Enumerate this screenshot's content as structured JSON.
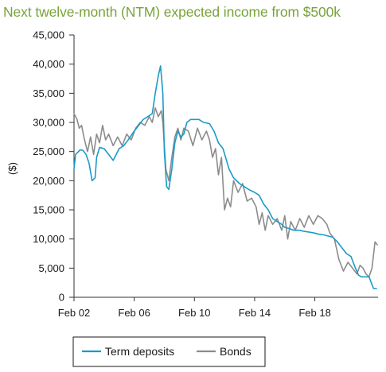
{
  "chart_data": {
    "type": "line",
    "title": "Next twelve-month (NTM) expected income from $500k",
    "ylabel": "($)",
    "xlabel": "",
    "ylim": [
      0,
      45000
    ],
    "yticks": [
      0,
      5000,
      10000,
      15000,
      20000,
      25000,
      30000,
      35000,
      40000,
      45000
    ],
    "yticklabels": [
      "0",
      "5,000",
      "10,000",
      "15,000",
      "20,000",
      "25,000",
      "30,000",
      "35,000",
      "40,000",
      "45,000"
    ],
    "xlim": [
      2002,
      2022.2
    ],
    "xticks": [
      2002,
      2006,
      2010,
      2014,
      2018
    ],
    "xticklabels": [
      "Feb 02",
      "Feb 06",
      "Feb 10",
      "Feb 14",
      "Feb 18"
    ],
    "grid": false,
    "legend_position": "bottom",
    "series": [
      {
        "name": "Term deposits",
        "color": "#1a9bc7",
        "x": [
          2002.0,
          2002.1,
          2002.3,
          2002.4,
          2002.6,
          2002.8,
          2003.0,
          2003.2,
          2003.4,
          2003.5,
          2003.7,
          2004.0,
          2004.3,
          2004.6,
          2005.0,
          2005.3,
          2005.6,
          2006.0,
          2006.3,
          2006.6,
          2006.9,
          2007.2,
          2007.4,
          2007.6,
          2007.75,
          2007.9,
          2008.0,
          2008.15,
          2008.3,
          2008.5,
          2008.7,
          2008.9,
          2009.1,
          2009.3,
          2009.5,
          2009.75,
          2010.0,
          2010.3,
          2010.6,
          2011.0,
          2011.3,
          2011.6,
          2011.9,
          2012.3,
          2012.6,
          2013.0,
          2013.3,
          2013.6,
          2014.0,
          2014.3,
          2014.6,
          2014.9,
          2015.2,
          2015.5,
          2015.8,
          2016.0,
          2016.3,
          2016.6,
          2017.0,
          2017.3,
          2017.6,
          2018.0,
          2018.3,
          2018.6,
          2018.9,
          2019.2,
          2019.5,
          2019.8,
          2020.1,
          2020.4,
          2020.7,
          2020.9,
          2021.1,
          2021.4,
          2021.6,
          2021.9,
          2022.1
        ],
        "y": [
          22000,
          24500,
          25000,
          25300,
          25200,
          24500,
          23000,
          20000,
          20500,
          24000,
          25700,
          25500,
          24500,
          23500,
          25500,
          26000,
          27000,
          28500,
          29500,
          30500,
          31000,
          31500,
          35000,
          38000,
          39700,
          35000,
          25000,
          19000,
          18500,
          22000,
          26500,
          28500,
          27500,
          28000,
          30000,
          30500,
          30500,
          30500,
          30000,
          29800,
          28500,
          26500,
          25500,
          22000,
          20500,
          19500,
          19000,
          18500,
          18000,
          17500,
          16000,
          15000,
          13500,
          13000,
          12500,
          12000,
          11800,
          11500,
          11500,
          11300,
          11200,
          11000,
          10800,
          10700,
          10500,
          10300,
          9500,
          8500,
          7500,
          7000,
          5000,
          3800,
          3500,
          3500,
          3500,
          1500,
          1500
        ]
      },
      {
        "name": "Bonds",
        "color": "#8c8c8c",
        "x": [
          2002.0,
          2002.2,
          2002.35,
          2002.5,
          2002.7,
          2002.9,
          2003.1,
          2003.3,
          2003.5,
          2003.7,
          2003.9,
          2004.1,
          2004.3,
          2004.6,
          2004.9,
          2005.2,
          2005.5,
          2005.8,
          2006.1,
          2006.4,
          2006.7,
          2007.0,
          2007.2,
          2007.4,
          2007.6,
          2007.8,
          2007.9,
          2008.1,
          2008.3,
          2008.5,
          2008.7,
          2008.9,
          2009.1,
          2009.3,
          2009.6,
          2009.9,
          2010.2,
          2010.5,
          2010.8,
          2011.0,
          2011.2,
          2011.4,
          2011.6,
          2011.8,
          2012.0,
          2012.2,
          2012.4,
          2012.6,
          2012.9,
          2013.2,
          2013.5,
          2013.8,
          2014.1,
          2014.3,
          2014.5,
          2014.7,
          2014.9,
          2015.2,
          2015.5,
          2015.8,
          2016.0,
          2016.2,
          2016.4,
          2016.7,
          2017.0,
          2017.3,
          2017.6,
          2017.9,
          2018.2,
          2018.5,
          2018.8,
          2019.0,
          2019.3,
          2019.6,
          2019.9,
          2020.2,
          2020.5,
          2020.8,
          2021.0,
          2021.2,
          2021.4,
          2021.6,
          2021.8,
          2022.0,
          2022.15
        ],
        "y": [
          31500,
          30500,
          29000,
          29500,
          27000,
          25000,
          27500,
          24500,
          28000,
          26500,
          29500,
          27000,
          28000,
          26000,
          27500,
          26000,
          28000,
          27000,
          29000,
          30000,
          29500,
          31000,
          30000,
          32500,
          31000,
          32000,
          30000,
          22000,
          20000,
          24000,
          27500,
          29000,
          27000,
          29000,
          28500,
          26000,
          29000,
          27000,
          28500,
          27000,
          24000,
          25500,
          21000,
          24000,
          15000,
          17000,
          15500,
          20000,
          18000,
          19500,
          16500,
          17000,
          15500,
          12500,
          14500,
          11500,
          14000,
          12500,
          13500,
          11500,
          14000,
          10000,
          13000,
          11500,
          13500,
          12000,
          14000,
          12500,
          14000,
          13500,
          12500,
          11000,
          10000,
          6500,
          4500,
          6000,
          5000,
          4000,
          5500,
          5000,
          4000,
          3500,
          5000,
          9500,
          9000
        ]
      }
    ]
  }
}
